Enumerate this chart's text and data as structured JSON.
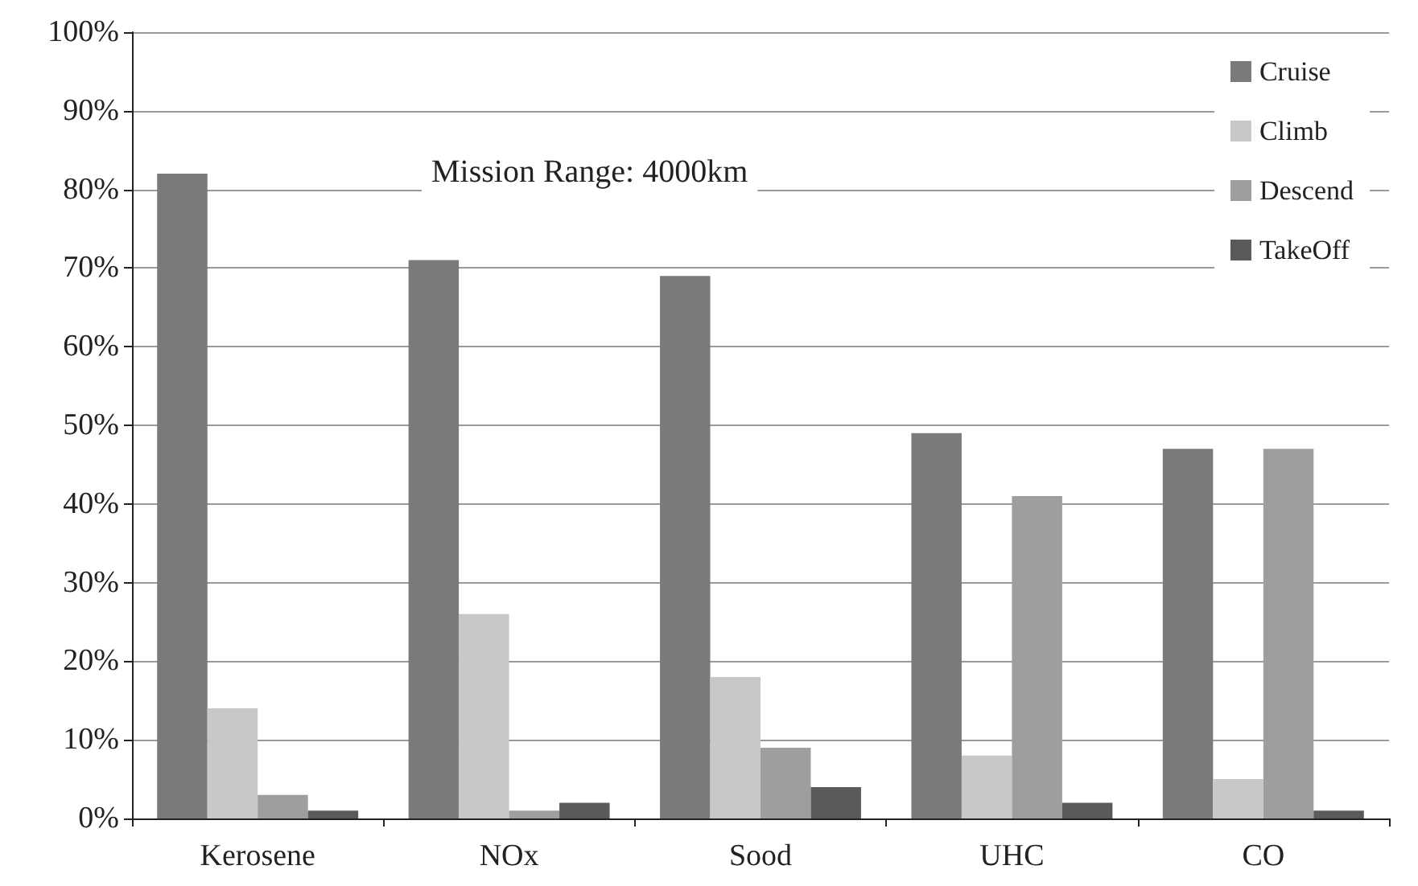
{
  "chart_data": {
    "type": "bar",
    "categories": [
      "Kerosene",
      "NOx",
      "Sood",
      "UHC",
      "CO"
    ],
    "series": [
      {
        "name": "Cruise",
        "color": "#7a7a7a",
        "values": [
          82,
          71,
          69,
          49,
          47
        ]
      },
      {
        "name": "Climb",
        "color": "#c8c8c8",
        "values": [
          14,
          26,
          18,
          8,
          5
        ]
      },
      {
        "name": "Descend",
        "color": "#9e9e9e",
        "values": [
          3,
          1,
          9,
          41,
          47
        ]
      },
      {
        "name": "TakeOff",
        "color": "#5a5a5a",
        "values": [
          1,
          2,
          4,
          2,
          1
        ]
      }
    ],
    "ylim": [
      0,
      100
    ],
    "yticks": [
      {
        "value": 0,
        "label": "0%"
      },
      {
        "value": 10,
        "label": "10%"
      },
      {
        "value": 20,
        "label": "20%"
      },
      {
        "value": 30,
        "label": "30%"
      },
      {
        "value": 40,
        "label": "40%"
      },
      {
        "value": 50,
        "label": "50%"
      },
      {
        "value": 60,
        "label": "60%"
      },
      {
        "value": 70,
        "label": "70%"
      },
      {
        "value": 80,
        "label": "80%"
      },
      {
        "value": 90,
        "label": "90%"
      },
      {
        "value": 100,
        "label": "100%"
      }
    ],
    "annotations": [
      "Mission Range: 4000km"
    ],
    "grid": "y",
    "legend": "top right"
  }
}
